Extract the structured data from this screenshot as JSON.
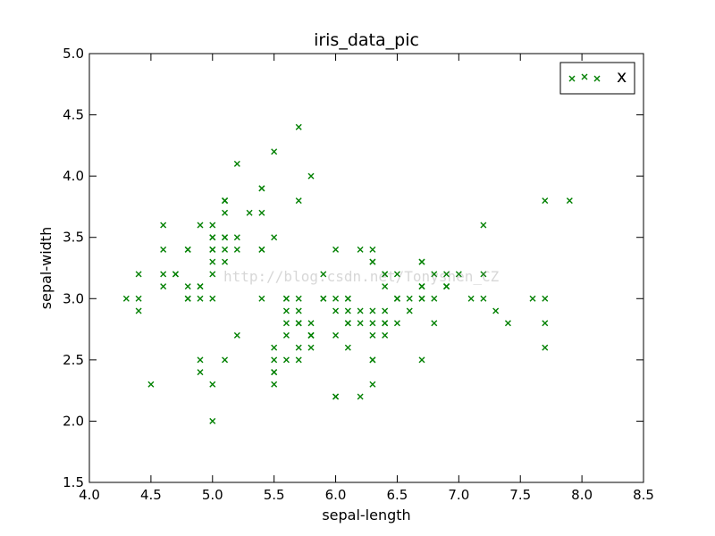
{
  "chart_data": {
    "type": "scatter",
    "title": "iris_data_pic",
    "xlabel": "sepal-length",
    "ylabel": "sepal-width",
    "xlim": [
      4.0,
      8.5
    ],
    "ylim": [
      1.5,
      5.0
    ],
    "xticks": [
      "4.0",
      "4.5",
      "5.0",
      "5.5",
      "6.0",
      "6.5",
      "7.0",
      "7.5",
      "8.0",
      "8.5"
    ],
    "yticks": [
      "1.5",
      "2.0",
      "2.5",
      "3.0",
      "3.5",
      "4.0",
      "4.5",
      "5.0"
    ],
    "grid": false,
    "legend_position": "top-right",
    "marker": "x",
    "color": "#008000",
    "series": [
      {
        "name": "x",
        "x": [
          5.1,
          4.9,
          4.7,
          4.6,
          5.0,
          5.4,
          4.6,
          5.0,
          4.4,
          4.9,
          5.4,
          4.8,
          4.8,
          4.3,
          5.8,
          5.7,
          5.4,
          5.1,
          5.7,
          5.1,
          5.4,
          5.1,
          4.6,
          5.1,
          4.8,
          5.0,
          5.0,
          5.2,
          5.2,
          4.7,
          4.8,
          5.4,
          5.2,
          5.5,
          4.9,
          5.0,
          5.5,
          4.9,
          4.4,
          5.1,
          5.0,
          4.5,
          4.4,
          5.0,
          5.1,
          4.8,
          5.1,
          4.6,
          5.3,
          5.0,
          7.0,
          6.4,
          6.9,
          5.5,
          6.5,
          5.7,
          6.3,
          4.9,
          6.6,
          5.2,
          5.0,
          5.9,
          6.0,
          6.1,
          5.6,
          6.7,
          5.6,
          5.8,
          6.2,
          5.6,
          5.9,
          6.1,
          6.3,
          6.1,
          6.4,
          6.6,
          6.8,
          6.7,
          6.0,
          5.7,
          5.5,
          5.5,
          5.8,
          6.0,
          5.4,
          6.0,
          6.7,
          6.3,
          5.6,
          5.5,
          5.5,
          6.1,
          5.8,
          5.0,
          5.6,
          5.7,
          5.7,
          6.2,
          5.1,
          5.7,
          6.3,
          5.8,
          7.1,
          6.3,
          6.5,
          7.6,
          4.9,
          7.3,
          6.7,
          7.2,
          6.5,
          6.4,
          6.8,
          5.7,
          5.8,
          6.4,
          6.5,
          7.7,
          7.7,
          6.0,
          6.9,
          5.6,
          7.7,
          6.3,
          6.7,
          7.2,
          6.2,
          6.1,
          6.4,
          7.2,
          7.4,
          7.9,
          6.4,
          6.3,
          6.1,
          7.7,
          6.3,
          6.4,
          6.0,
          6.9,
          6.7,
          6.9,
          5.8,
          6.8,
          6.7,
          6.7,
          6.3,
          6.5,
          6.2,
          5.9
        ],
        "y": [
          3.5,
          3.0,
          3.2,
          3.1,
          3.6,
          3.9,
          3.4,
          3.4,
          2.9,
          3.1,
          3.7,
          3.4,
          3.0,
          3.0,
          4.0,
          4.4,
          3.9,
          3.5,
          3.8,
          3.8,
          3.4,
          3.7,
          3.6,
          3.3,
          3.4,
          3.0,
          3.4,
          3.5,
          3.4,
          3.2,
          3.1,
          3.4,
          4.1,
          4.2,
          3.1,
          3.2,
          3.5,
          3.6,
          3.0,
          3.4,
          3.5,
          2.3,
          3.2,
          3.5,
          3.8,
          3.0,
          3.8,
          3.2,
          3.7,
          3.3,
          3.2,
          3.2,
          3.1,
          2.3,
          2.8,
          2.8,
          3.3,
          2.4,
          2.9,
          2.7,
          2.0,
          3.0,
          2.2,
          2.9,
          2.9,
          3.1,
          3.0,
          2.7,
          2.2,
          2.5,
          3.2,
          2.8,
          2.5,
          2.8,
          2.9,
          3.0,
          2.8,
          3.0,
          2.9,
          2.6,
          2.4,
          2.4,
          2.7,
          2.7,
          3.0,
          3.4,
          3.1,
          2.3,
          3.0,
          2.5,
          2.6,
          3.0,
          2.6,
          2.3,
          2.7,
          3.0,
          2.9,
          2.9,
          2.5,
          2.8,
          3.3,
          2.7,
          3.0,
          2.9,
          3.0,
          3.0,
          2.5,
          2.9,
          2.5,
          3.6,
          3.2,
          2.7,
          3.0,
          2.5,
          2.8,
          3.2,
          3.0,
          3.8,
          2.6,
          2.2,
          3.2,
          2.8,
          2.8,
          2.7,
          3.3,
          3.2,
          2.8,
          3.0,
          2.8,
          3.0,
          2.8,
          3.8,
          2.8,
          2.8,
          2.6,
          3.0,
          3.4,
          3.1,
          3.0,
          3.1,
          3.1,
          3.1,
          2.7,
          3.2,
          3.3,
          3.0,
          2.5,
          3.0,
          3.4,
          3.0
        ]
      }
    ]
  },
  "watermark": "http://blog.csdn.net/Tonyshen_CZ"
}
